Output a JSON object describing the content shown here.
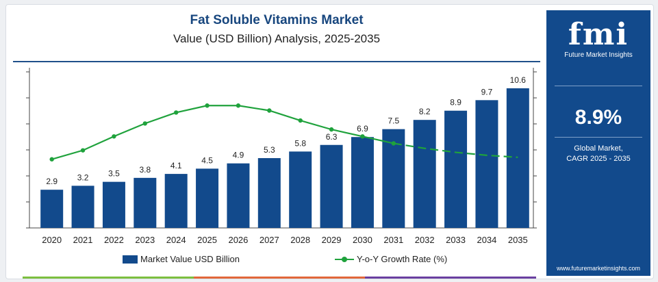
{
  "header": {
    "title": "Fat Soluble Vitamins Market",
    "subtitle": "Value (USD Billion) Analysis, 2025-2035"
  },
  "legend": {
    "bar_label": "Market Value USD Billion",
    "line_label": "Y-o-Y Growth Rate (%)"
  },
  "side_panel": {
    "logo_text": "fmi",
    "logo_subtext": "Future Market Insights",
    "cagr_value": "8.9%",
    "cagr_label_line1": "Global Market,",
    "cagr_label_line2": "CAGR 2025 - 2035",
    "website": "www.futuremarketinsights.com"
  },
  "colors": {
    "bar": "#124a8c",
    "line": "#1fa23c",
    "panel": "#124a8c",
    "title": "#17467e"
  },
  "chart_data": {
    "type": "bar",
    "categories": [
      "2020",
      "2021",
      "2022",
      "2023",
      "2024",
      "2025",
      "2026",
      "2027",
      "2028",
      "2029",
      "2030",
      "2031",
      "2032",
      "2033",
      "2034",
      "2035"
    ],
    "series": [
      {
        "name": "Market Value USD Billion",
        "type": "bar",
        "values": [
          2.9,
          3.2,
          3.5,
          3.8,
          4.1,
          4.5,
          4.9,
          5.3,
          5.8,
          6.3,
          6.9,
          7.5,
          8.2,
          8.9,
          9.7,
          10.6
        ]
      },
      {
        "name": "Y-o-Y Growth Rate (%)",
        "type": "line",
        "values": [
          6.9,
          7.8,
          9.2,
          10.5,
          11.6,
          12.3,
          12.3,
          11.8,
          10.8,
          9.9,
          9.2,
          8.5,
          8.0,
          7.6,
          7.3,
          7.1
        ],
        "forecast_dashed_from": "2031"
      }
    ],
    "ylim": [
      0,
      12
    ],
    "line_ylim": [
      0,
      15
    ],
    "grid": false,
    "legend_position": "bottom"
  }
}
